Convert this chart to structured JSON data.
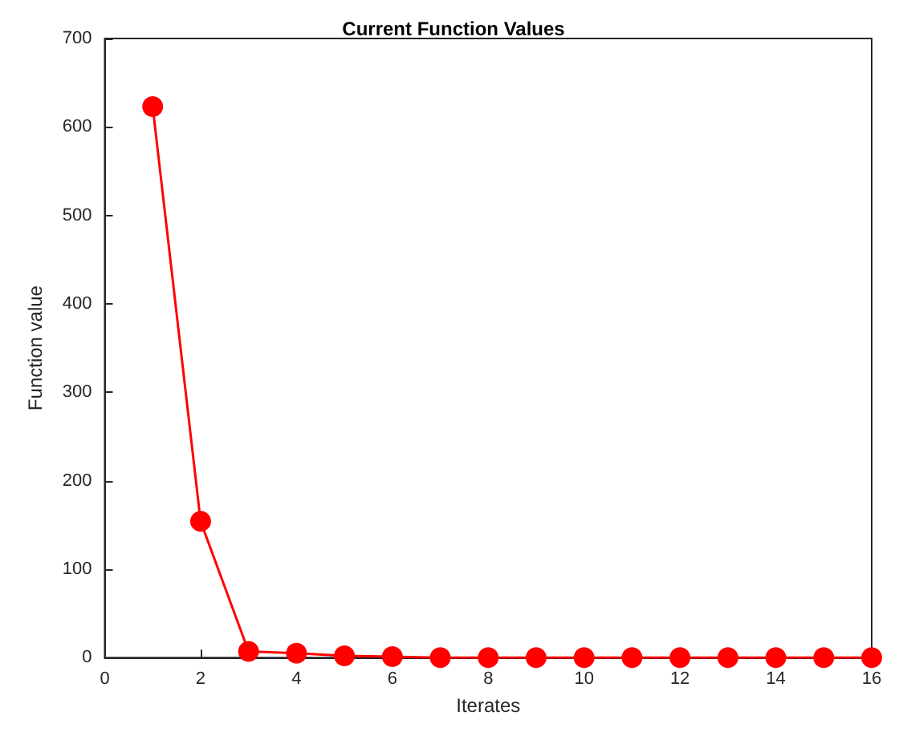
{
  "chart_data": {
    "type": "line",
    "title": "Current Function Values",
    "xlabel": "Iterates",
    "ylabel": "Function value",
    "x": [
      1,
      2,
      3,
      4,
      5,
      6,
      7,
      8,
      9,
      10,
      11,
      12,
      13,
      14,
      15,
      16
    ],
    "series": [
      {
        "color": "#ff0000",
        "values": [
          623,
          154,
          7,
          5,
          2,
          1,
          0,
          0,
          0,
          0,
          0,
          0,
          0,
          0,
          0,
          0
        ]
      }
    ],
    "xlim": [
      0,
      16
    ],
    "xticks": [
      0,
      2,
      4,
      6,
      8,
      10,
      12,
      14,
      16
    ],
    "ylim": [
      0,
      700
    ],
    "yticks": [
      0,
      100,
      200,
      300,
      400,
      500,
      600,
      700
    ],
    "grid": false,
    "marker": "circle",
    "line_style": "solid"
  }
}
